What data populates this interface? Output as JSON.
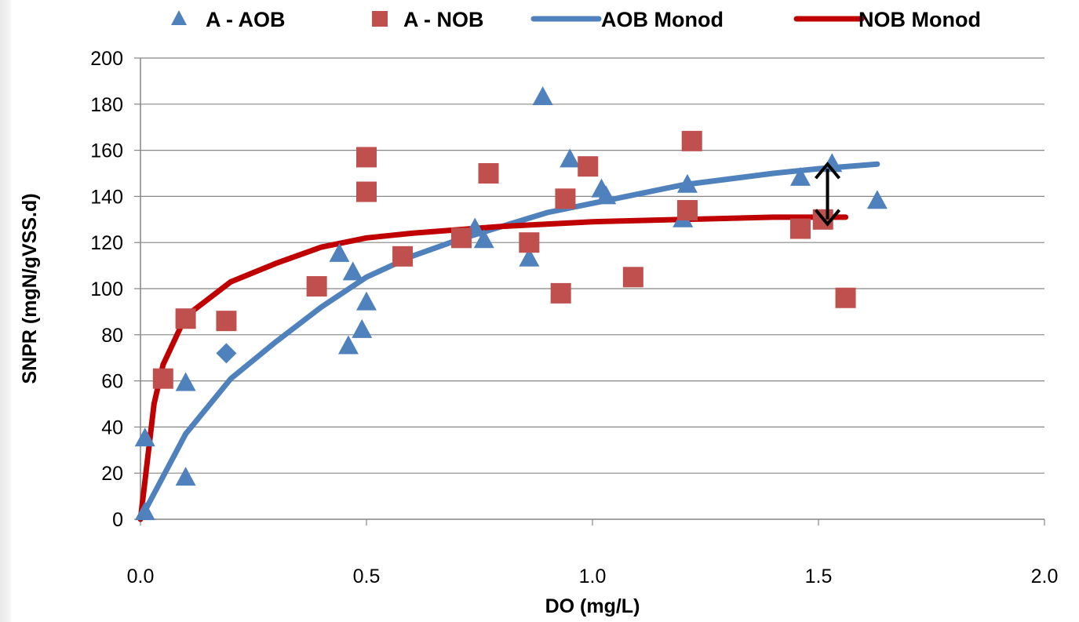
{
  "chart_data": {
    "type": "scatter",
    "xlabel": "DO (mg/L)",
    "ylabel": "SNPR (mgN/gVSS.d)",
    "xlim": [
      0,
      2
    ],
    "ylim": [
      0,
      200
    ],
    "x_ticks": [
      "0.0",
      "0.5",
      "1.0",
      "1.5",
      "2.0"
    ],
    "x_tick_values": [
      0,
      0.5,
      1.0,
      1.5,
      2.0
    ],
    "y_ticks": [
      "0",
      "20",
      "40",
      "60",
      "80",
      "100",
      "120",
      "140",
      "160",
      "180",
      "200"
    ],
    "y_tick_values": [
      0,
      20,
      40,
      60,
      80,
      100,
      120,
      140,
      160,
      180,
      200
    ],
    "grid": "horizontal",
    "legend_position": "top",
    "series": [
      {
        "name": "A - AOB",
        "kind": "marker",
        "marker": "triangle",
        "color": "#4f81bd",
        "points": [
          [
            0.01,
            35
          ],
          [
            0.01,
            3
          ],
          [
            0.1,
            59
          ],
          [
            0.1,
            18
          ],
          [
            0.44,
            115
          ],
          [
            0.46,
            75
          ],
          [
            0.47,
            107
          ],
          [
            0.49,
            82
          ],
          [
            0.5,
            94
          ],
          [
            0.74,
            126
          ],
          [
            0.76,
            121
          ],
          [
            0.86,
            113
          ],
          [
            0.89,
            183
          ],
          [
            0.95,
            156
          ],
          [
            1.02,
            143
          ],
          [
            1.03,
            140
          ],
          [
            1.2,
            130
          ],
          [
            1.21,
            145
          ],
          [
            1.46,
            148
          ],
          [
            1.53,
            154
          ],
          [
            1.63,
            138
          ]
        ]
      },
      {
        "name": "A - NOB",
        "kind": "marker",
        "marker": "square",
        "color": "#c0504d",
        "points": [
          [
            0.05,
            61
          ],
          [
            0.1,
            87
          ],
          [
            0.19,
            86
          ],
          [
            0.39,
            101
          ],
          [
            0.5,
            142
          ],
          [
            0.5,
            157
          ],
          [
            0.58,
            114
          ],
          [
            0.71,
            122
          ],
          [
            0.77,
            150
          ],
          [
            0.86,
            120
          ],
          [
            0.93,
            98
          ],
          [
            0.94,
            139
          ],
          [
            0.99,
            153
          ],
          [
            1.09,
            105
          ],
          [
            1.21,
            134
          ],
          [
            1.22,
            164
          ],
          [
            1.46,
            126
          ],
          [
            1.51,
            130
          ],
          [
            1.56,
            96
          ]
        ]
      },
      {
        "name": "AOB Monod",
        "kind": "line",
        "color": "#4f81bd",
        "points": [
          [
            0.0,
            0
          ],
          [
            0.1,
            37
          ],
          [
            0.2,
            61
          ],
          [
            0.3,
            77
          ],
          [
            0.4,
            92
          ],
          [
            0.5,
            105
          ],
          [
            0.6,
            114
          ],
          [
            0.7,
            121
          ],
          [
            0.8,
            127
          ],
          [
            0.9,
            133
          ],
          [
            1.0,
            137
          ],
          [
            1.2,
            145
          ],
          [
            1.4,
            150
          ],
          [
            1.5,
            152
          ],
          [
            1.63,
            154
          ]
        ]
      },
      {
        "name": "NOB Monod",
        "kind": "line",
        "color": "#c00000",
        "points": [
          [
            0.0,
            0
          ],
          [
            0.03,
            50
          ],
          [
            0.05,
            67
          ],
          [
            0.1,
            88
          ],
          [
            0.2,
            103
          ],
          [
            0.3,
            111
          ],
          [
            0.4,
            118
          ],
          [
            0.5,
            122
          ],
          [
            0.6,
            124
          ],
          [
            0.8,
            127
          ],
          [
            1.0,
            129
          ],
          [
            1.2,
            130
          ],
          [
            1.4,
            131
          ],
          [
            1.56,
            131
          ]
        ]
      }
    ],
    "extra_points": [
      {
        "marker": "diamond",
        "color": "#4f81bd",
        "x": 0.19,
        "y": 72
      }
    ],
    "annotations": [
      {
        "type": "double-arrow",
        "x": 1.52,
        "y1": 128,
        "y2": 154,
        "color": "#000000"
      }
    ]
  }
}
